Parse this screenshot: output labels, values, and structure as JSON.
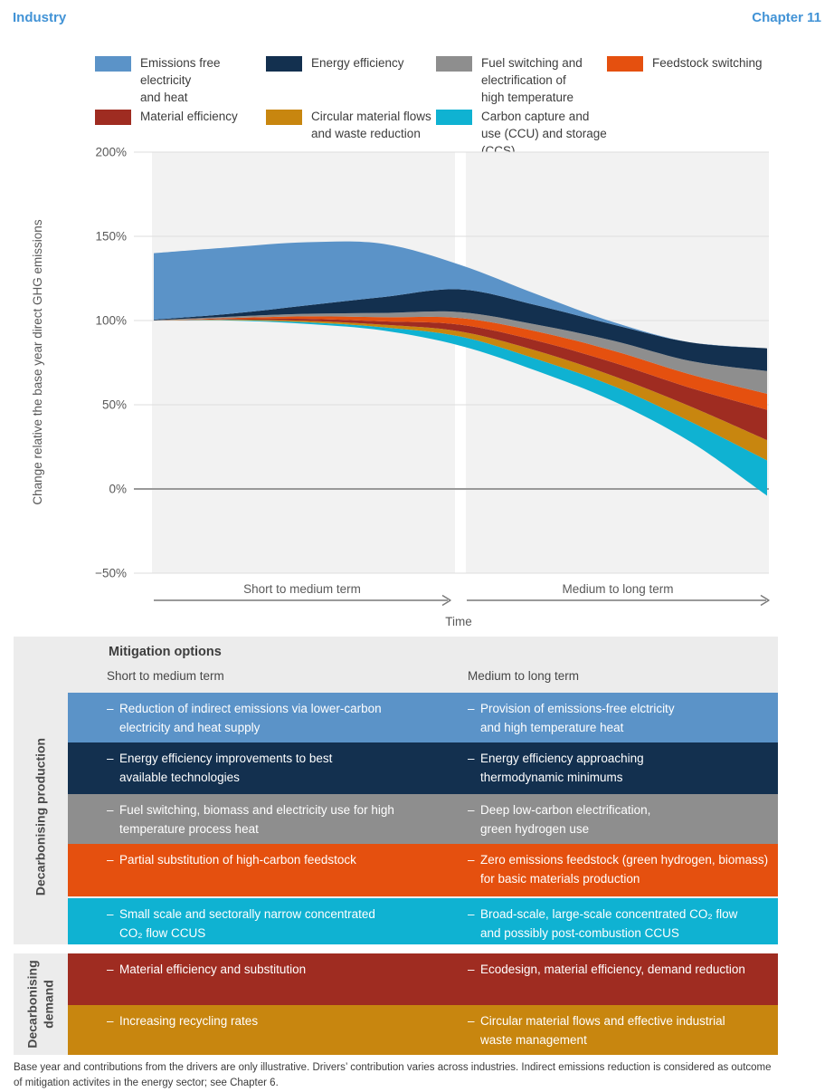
{
  "header": {
    "title": "Industry",
    "chapter": "Chapter 11",
    "accent_color": "#4293d6"
  },
  "legend": {
    "items": [
      {
        "label": "Emissions free electricity\nand heat",
        "color": "#5b93c8"
      },
      {
        "label": "Energy efficiency",
        "color": "#13304f"
      },
      {
        "label": "Fuel switching and\nelectrification of\nhigh temperature",
        "color": "#8e8e8e"
      },
      {
        "label": "Feedstock switching",
        "color": "#e5500f"
      },
      {
        "label": "Material efficiency",
        "color": "#9f2c21"
      },
      {
        "label": "Circular material flows\nand waste reduction",
        "color": "#c8860f"
      },
      {
        "label": "Carbon capture and\nuse (CCU) and storage (CCS)",
        "color": "#0fb2d2"
      }
    ]
  },
  "chart": {
    "y_axis_title": "Change relative the base year direct GHG emissions",
    "ticks": [
      {
        "label": "200%",
        "value": 200
      },
      {
        "label": "150%",
        "value": 150
      },
      {
        "label": "100%",
        "value": 100
      },
      {
        "label": "50%",
        "value": 50
      },
      {
        "label": "0%",
        "value": 0
      },
      {
        "label": "−50%",
        "value": -50
      }
    ],
    "x_labels": {
      "left": "Short to medium term",
      "right": "Medium to long term",
      "axis": "Time"
    }
  },
  "chart_data": {
    "type": "area",
    "stacked": true,
    "title": "",
    "xlabel": "Time",
    "ylabel": "Change relative the base year direct GHG emissions",
    "ylim": [
      -50,
      200
    ],
    "grid": true,
    "legend_position": "top",
    "x_regions": [
      "Short to medium term",
      "Medium to long term"
    ],
    "x": [
      0,
      0.125,
      0.25,
      0.375,
      0.5,
      0.625,
      0.75,
      0.875,
      1
    ],
    "baseline_net_emissions_pct": [
      100,
      100,
      98,
      94,
      85,
      70,
      52,
      28,
      -4
    ],
    "series": [
      {
        "name": "Carbon capture and use (CCU) and storage (CCS)",
        "color": "#0fb2d2",
        "values": [
          0,
          0.3,
          1,
          2,
          5.5,
          7,
          9,
          12,
          21
        ]
      },
      {
        "name": "Circular material flows and waste reduction",
        "color": "#c8860f",
        "values": [
          0,
          0.3,
          0.8,
          1.5,
          3,
          5,
          6,
          9,
          12
        ]
      },
      {
        "name": "Material efficiency",
        "color": "#9f2c21",
        "values": [
          0,
          0.4,
          1.2,
          2,
          4,
          6,
          8,
          11,
          18
        ]
      },
      {
        "name": "Feedstock switching",
        "color": "#e5500f",
        "values": [
          0,
          0.5,
          1.5,
          2.5,
          4,
          5.5,
          7,
          8,
          9.5
        ]
      },
      {
        "name": "Fuel switching and electrification of high temperature",
        "color": "#8e8e8e",
        "values": [
          0.2,
          0.8,
          1.5,
          2.5,
          3.5,
          4,
          6,
          8,
          13.5
        ]
      },
      {
        "name": "Energy efficiency",
        "color": "#13304f",
        "values": [
          0.3,
          1.7,
          5,
          9.5,
          13.5,
          11.5,
          9.5,
          11,
          13.5
        ]
      },
      {
        "name": "Emissions free electricity and heat",
        "color": "#5b93c8",
        "values": [
          39.5,
          39.5,
          37.5,
          31.5,
          14.5,
          6.5,
          1.5,
          0,
          0
        ]
      }
    ],
    "yticks": [
      200,
      150,
      100,
      50,
      0,
      -50
    ]
  },
  "table": {
    "dash": "–",
    "title": "Mitigation options",
    "col_left": "Short to medium term",
    "col_right": "Medium to long term",
    "groups": [
      {
        "label": "Decarbonising production",
        "rows": [
          {
            "color": "#5b93c8",
            "left": "Reduction of indirect emissions via lower-carbon\nelectricity and heat supply",
            "right": "Provision of emissions-free elctricity\nand high temperature heat"
          },
          {
            "color": "#13304f",
            "left": "Energy efficiency improvements to best\navailable technologies",
            "right": "Energy efficiency approaching\nthermodynamic minimums"
          },
          {
            "color": "#8e8e8e",
            "left": "Fuel switching, biomass and electricity use for high\ntemperature process heat",
            "right": "Deep low-carbon electrification,\ngreen hydrogen use"
          },
          {
            "color": "#e5500f",
            "left": "Partial substitution of high-carbon feedstock",
            "right": "Zero emissions feedstock (green hydrogen, biomass)\nfor basic materials production"
          },
          {
            "color": "#0fb2d2",
            "left": "Small scale and sectorally narrow concentrated\nCO₂ flow CCUS",
            "right": "Broad-scale, large-scale concentrated CO₂ flow\nand possibly post-combustion CCUS"
          }
        ]
      },
      {
        "label": "Decarbonising\ndemand",
        "rows": [
          {
            "color": "#9f2c21",
            "left": "Material efficiency and substitution",
            "right": "Ecodesign, material efficiency, demand reduction"
          },
          {
            "color": "#c8860f",
            "left": "Increasing recycling rates",
            "right": "Circular material flows and effective industrial\nwaste management"
          }
        ]
      }
    ]
  },
  "footnote": {
    "text": "Base year and contributions from the drivers are only illustrative. Drivers’ contribution varies across industries. Indirect emissions reduction is considered as outcome\nof mitigation activites in the energy sector; see Chapter 6."
  }
}
